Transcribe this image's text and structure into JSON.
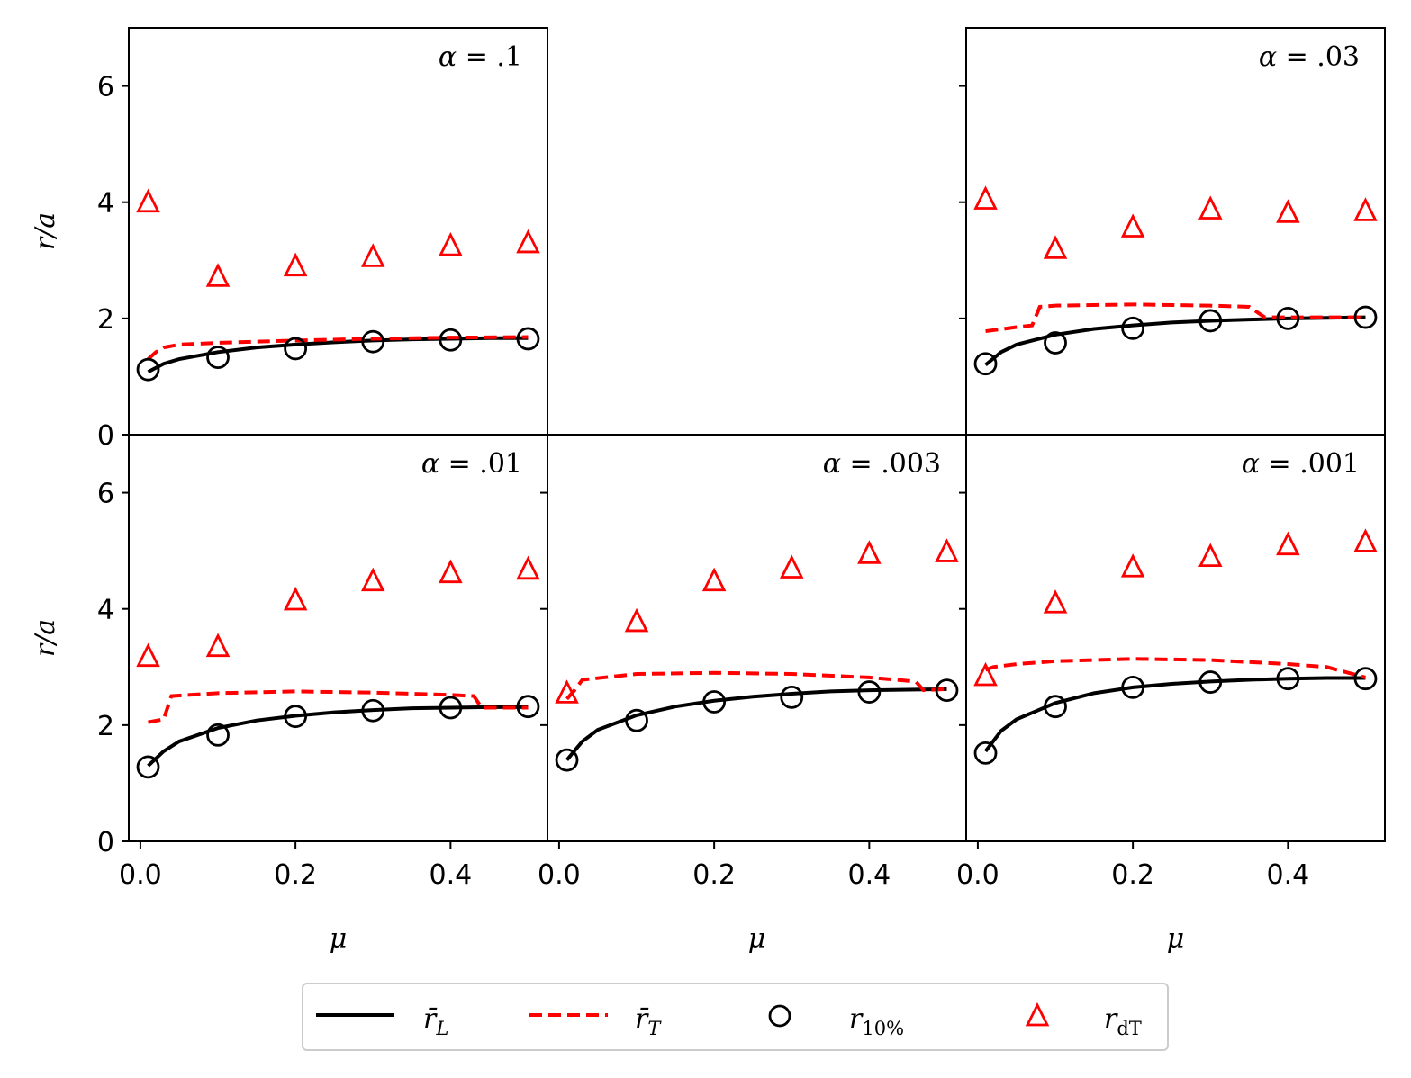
{
  "chart_data": {
    "type": "line",
    "layout": "2x3 panel grid, top-middle panel empty, shared axes",
    "xlabel": "μ",
    "ylabel": "r/a",
    "xlim": [
      -0.015,
      0.525
    ],
    "ylim": [
      0,
      7
    ],
    "xticks": [
      0.0,
      0.2,
      0.4
    ],
    "xtick_labels": [
      "0.0",
      "0.2",
      "0.4"
    ],
    "yticks": [
      0,
      2,
      4,
      6
    ],
    "ytick_labels": [
      "0",
      "2",
      "4",
      "6"
    ],
    "legend": {
      "placement": "bottom-center",
      "entries": [
        {
          "key": "rL",
          "base": "r̄",
          "sub": "L",
          "style": "solid-black-line"
        },
        {
          "key": "rT",
          "base": "r̄",
          "sub": "T",
          "style": "dashed-red-line"
        },
        {
          "key": "r10",
          "base": "r",
          "sub": "10%",
          "style": "black-open-circle"
        },
        {
          "key": "rdT",
          "base": "r",
          "sub": "dT",
          "style": "red-open-triangle"
        }
      ]
    },
    "colors": {
      "rL": "#000000",
      "rT": "#ff0000",
      "r10": "#000000",
      "rdT": "#ff0000"
    },
    "panels": [
      {
        "id": "a0.1",
        "row": 0,
        "col": 0,
        "title_prefix": "α",
        "title_value": ".1",
        "rL_x": [
          0.01,
          0.03,
          0.05,
          0.1,
          0.15,
          0.2,
          0.25,
          0.3,
          0.35,
          0.4,
          0.45,
          0.5
        ],
        "rL_y": [
          1.08,
          1.22,
          1.3,
          1.42,
          1.5,
          1.55,
          1.59,
          1.62,
          1.64,
          1.65,
          1.66,
          1.66
        ],
        "rT_x": [
          0.01,
          0.02,
          0.03,
          0.05,
          0.1,
          0.2,
          0.3,
          0.4,
          0.5
        ],
        "rT_y": [
          1.3,
          1.42,
          1.5,
          1.55,
          1.58,
          1.62,
          1.65,
          1.67,
          1.68
        ],
        "r10_x": [
          0.01,
          0.1,
          0.2,
          0.3,
          0.4,
          0.5
        ],
        "r10_y": [
          1.12,
          1.33,
          1.48,
          1.6,
          1.63,
          1.65
        ],
        "rdT_x": [
          0.01,
          0.1,
          0.2,
          0.3,
          0.4,
          0.5
        ],
        "rdT_y": [
          4.0,
          2.72,
          2.9,
          3.06,
          3.25,
          3.3
        ]
      },
      {
        "id": "a0.03",
        "row": 0,
        "col": 2,
        "title_prefix": "α",
        "title_value": ".03",
        "rL_x": [
          0.01,
          0.03,
          0.05,
          0.1,
          0.15,
          0.2,
          0.25,
          0.3,
          0.35,
          0.4,
          0.45,
          0.5
        ],
        "rL_y": [
          1.2,
          1.42,
          1.55,
          1.72,
          1.82,
          1.88,
          1.93,
          1.96,
          1.98,
          2.0,
          2.01,
          2.02
        ],
        "rT_x": [
          0.01,
          0.05,
          0.07,
          0.08,
          0.1,
          0.2,
          0.3,
          0.35,
          0.37,
          0.4,
          0.45,
          0.5
        ],
        "rT_y": [
          1.78,
          1.85,
          1.88,
          2.2,
          2.22,
          2.24,
          2.22,
          2.2,
          2.02,
          2.02,
          2.02,
          2.02
        ],
        "r10_x": [
          0.01,
          0.1,
          0.2,
          0.3,
          0.4,
          0.5
        ],
        "r10_y": [
          1.22,
          1.58,
          1.83,
          1.96,
          2.0,
          2.02
        ],
        "rdT_x": [
          0.01,
          0.1,
          0.2,
          0.3,
          0.4,
          0.5
        ],
        "rdT_y": [
          4.05,
          3.2,
          3.57,
          3.88,
          3.82,
          3.85
        ]
      },
      {
        "id": "a0.01",
        "row": 1,
        "col": 0,
        "title_prefix": "α",
        "title_value": ".01",
        "rL_x": [
          0.01,
          0.03,
          0.05,
          0.1,
          0.15,
          0.2,
          0.25,
          0.3,
          0.35,
          0.4,
          0.45,
          0.5
        ],
        "rL_y": [
          1.3,
          1.55,
          1.72,
          1.95,
          2.08,
          2.16,
          2.22,
          2.26,
          2.29,
          2.3,
          2.31,
          2.31
        ],
        "rT_x": [
          0.01,
          0.03,
          0.04,
          0.1,
          0.2,
          0.3,
          0.4,
          0.43,
          0.44,
          0.5
        ],
        "rT_y": [
          2.05,
          2.1,
          2.5,
          2.55,
          2.58,
          2.56,
          2.52,
          2.5,
          2.3,
          2.3
        ],
        "r10_x": [
          0.01,
          0.1,
          0.2,
          0.3,
          0.4,
          0.5
        ],
        "r10_y": [
          1.28,
          1.83,
          2.15,
          2.25,
          2.3,
          2.32
        ],
        "rdT_x": [
          0.01,
          0.1,
          0.2,
          0.3,
          0.4,
          0.5
        ],
        "rdT_y": [
          3.18,
          3.35,
          4.15,
          4.48,
          4.62,
          4.68
        ]
      },
      {
        "id": "a0.003",
        "row": 1,
        "col": 1,
        "title_prefix": "α",
        "title_value": ".003",
        "rL_x": [
          0.01,
          0.03,
          0.05,
          0.1,
          0.15,
          0.2,
          0.25,
          0.3,
          0.35,
          0.4,
          0.45,
          0.5
        ],
        "rL_y": [
          1.4,
          1.72,
          1.92,
          2.17,
          2.32,
          2.42,
          2.49,
          2.54,
          2.58,
          2.6,
          2.61,
          2.62
        ],
        "rT_x": [
          0.01,
          0.02,
          0.03,
          0.1,
          0.2,
          0.3,
          0.4,
          0.46,
          0.47,
          0.5
        ],
        "rT_y": [
          2.45,
          2.6,
          2.78,
          2.88,
          2.9,
          2.88,
          2.82,
          2.75,
          2.6,
          2.62
        ],
        "r10_x": [
          0.01,
          0.1,
          0.2,
          0.3,
          0.4,
          0.5
        ],
        "r10_y": [
          1.4,
          2.08,
          2.4,
          2.48,
          2.57,
          2.6
        ],
        "rdT_x": [
          0.01,
          0.1,
          0.2,
          0.3,
          0.4,
          0.5
        ],
        "rdT_y": [
          2.55,
          3.78,
          4.48,
          4.7,
          4.95,
          4.98
        ]
      },
      {
        "id": "a0.001",
        "row": 1,
        "col": 2,
        "title_prefix": "α",
        "title_value": ".001",
        "rL_x": [
          0.01,
          0.03,
          0.05,
          0.1,
          0.15,
          0.2,
          0.25,
          0.3,
          0.35,
          0.4,
          0.45,
          0.5
        ],
        "rL_y": [
          1.55,
          1.9,
          2.1,
          2.38,
          2.55,
          2.65,
          2.71,
          2.75,
          2.78,
          2.8,
          2.81,
          2.81
        ],
        "rT_x": [
          0.01,
          0.02,
          0.05,
          0.1,
          0.2,
          0.3,
          0.4,
          0.45,
          0.5
        ],
        "rT_y": [
          2.95,
          3.0,
          3.05,
          3.1,
          3.14,
          3.12,
          3.05,
          3.0,
          2.82
        ],
        "r10_x": [
          0.01,
          0.1,
          0.2,
          0.3,
          0.4,
          0.5
        ],
        "r10_y": [
          1.52,
          2.32,
          2.65,
          2.74,
          2.8,
          2.8
        ],
        "rdT_x": [
          0.01,
          0.1,
          0.2,
          0.3,
          0.4,
          0.5
        ],
        "rdT_y": [
          2.85,
          4.1,
          4.72,
          4.9,
          5.1,
          5.15
        ]
      }
    ]
  }
}
